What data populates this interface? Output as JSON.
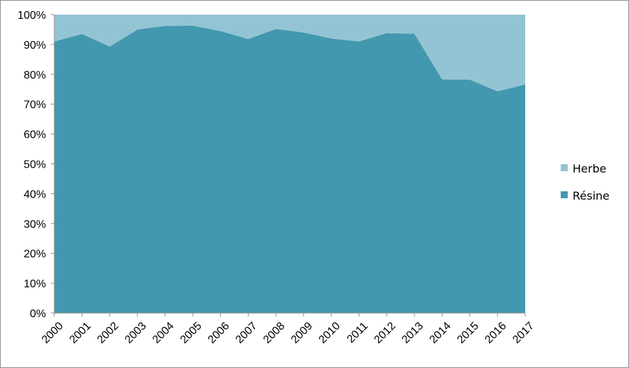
{
  "chart_data": {
    "type": "area",
    "stacked": "percent",
    "title": "",
    "xlabel": "",
    "ylabel": "",
    "categories": [
      "2000",
      "2001",
      "2002",
      "2003",
      "2004",
      "2005",
      "2006",
      "2007",
      "2008",
      "2009",
      "2010",
      "2011",
      "2012",
      "2013",
      "2014",
      "2015",
      "2016",
      "2017"
    ],
    "ylim": [
      0,
      100
    ],
    "y_ticks": [
      "0%",
      "10%",
      "20%",
      "30%",
      "40%",
      "50%",
      "60%",
      "70%",
      "80%",
      "90%",
      "100%"
    ],
    "series": [
      {
        "name": "Résine",
        "color": "#4298ae",
        "values": [
          91,
          93.5,
          89.3,
          95,
          96.2,
          96.3,
          94.5,
          91.8,
          95.2,
          94,
          92,
          91,
          93.8,
          93.6,
          78.3,
          78.2,
          74.3,
          76.6
        ]
      },
      {
        "name": "Herbe",
        "color": "#93c4d3",
        "values": [
          9,
          6.5,
          10.7,
          5,
          3.8,
          3.7,
          5.5,
          8.2,
          4.8,
          6,
          8,
          9,
          6.2,
          6.4,
          21.7,
          21.8,
          25.7,
          23.4
        ]
      }
    ],
    "legend": {
      "position": "right",
      "entries": [
        "Herbe",
        "Résine"
      ]
    },
    "grid": false
  }
}
